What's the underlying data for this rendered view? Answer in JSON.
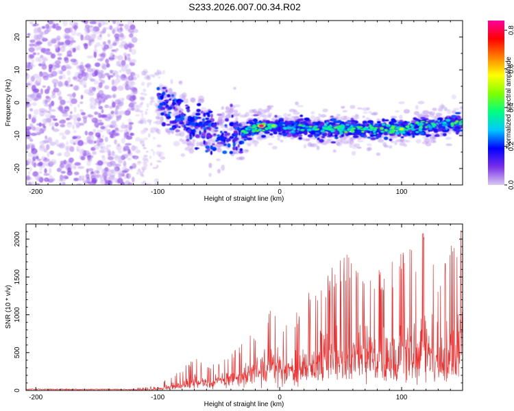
{
  "figure_title": "S233.2026.007.00.34.R02",
  "chart_data": [
    {
      "type": "heatmap",
      "title": "S233.2026.007.00.34.R02",
      "xlabel": "Height of straight line (km)",
      "ylabel": "Frequency (Hz)",
      "xlim": [
        -208,
        150
      ],
      "ylim": [
        -25,
        25
      ],
      "x_ticks": [
        "-200",
        "-100",
        "0",
        "100"
      ],
      "x_tick_values": [
        -200,
        -100,
        0,
        100
      ],
      "y_ticks": [
        "-20",
        "-10",
        "0",
        "10",
        "20"
      ],
      "y_tick_values": [
        -20,
        -10,
        0,
        10,
        20
      ],
      "colorbar": {
        "label": "Normalized spectral amplitude",
        "range": [
          0.0,
          0.85
        ],
        "ticks": [
          "0.0",
          "0.2",
          "0.4",
          "0.6",
          "0.8"
        ],
        "tick_values": [
          0.0,
          0.2,
          0.4,
          0.6,
          0.8
        ],
        "colors": [
          "#d8c8f2",
          "#7a2ee8",
          "#0000ff",
          "#00c8ff",
          "#00ff80",
          "#80ff00",
          "#ffff00",
          "#ff8000",
          "#ff0000",
          "#ff00a0"
        ]
      },
      "regions": [
        {
          "name": "noise",
          "x_range": [
            -208,
            -118
          ],
          "freq_range": [
            -25,
            25
          ],
          "amplitude": 0.02
        },
        {
          "name": "transition",
          "x_range": [
            -118,
            -95
          ],
          "freq_range": [
            -25,
            10
          ],
          "amplitude": 0.03
        },
        {
          "name": "turbulent-signal",
          "x_range": [
            -100,
            -30
          ],
          "freq_range": [
            -16,
            4
          ],
          "amplitude": 0.25
        },
        {
          "name": "steady-signal",
          "x_range": [
            -30,
            150
          ],
          "freq_range": [
            -11,
            -4
          ],
          "amplitude": 0.35
        }
      ],
      "signal_center_freq": [
        {
          "x": -110,
          "f": 2
        },
        {
          "x": -90,
          "f": -2
        },
        {
          "x": -70,
          "f": -7
        },
        {
          "x": -50,
          "f": -9
        },
        {
          "x": -30,
          "f": -9
        },
        {
          "x": -15,
          "f": -7
        },
        {
          "x": 0,
          "f": -7.5
        },
        {
          "x": 50,
          "f": -8
        },
        {
          "x": 100,
          "f": -8
        },
        {
          "x": 150,
          "f": -6
        }
      ],
      "peak_values": [
        {
          "x": -15,
          "f": -7,
          "amplitude": 0.85
        },
        {
          "x": -5,
          "f": -7,
          "amplitude": 0.5
        },
        {
          "x": 100,
          "f": -8,
          "amplitude": 0.55
        }
      ]
    },
    {
      "type": "line",
      "xlabel": "Height of straight line (km)",
      "ylabel": "SNR (10 * v/v)",
      "xlim": [
        -208,
        150
      ],
      "ylim": [
        0,
        2200
      ],
      "x_ticks": [
        "-200",
        "-100",
        "0",
        "100"
      ],
      "x_tick_values": [
        -200,
        -100,
        0,
        100
      ],
      "y_ticks": [
        "0",
        "500",
        "1000",
        "1500",
        "2000"
      ],
      "y_tick_values": [
        0,
        500,
        1000,
        1500,
        2000
      ],
      "color": "#ee3030",
      "series": [
        {
          "name": "SNR",
          "envelope_x": [
            -208,
            -120,
            -100,
            -90,
            -80,
            -70,
            -60,
            -50,
            -40,
            -30,
            -20,
            -10,
            0,
            10,
            20,
            30,
            40,
            50,
            60,
            70,
            80,
            90,
            100,
            110,
            120,
            130,
            140,
            150
          ],
          "envelope_max": [
            35,
            30,
            60,
            200,
            280,
            450,
            320,
            400,
            500,
            650,
            800,
            1100,
            1000,
            900,
            1300,
            1350,
            1550,
            1850,
            1750,
            1800,
            1600,
            1700,
            1850,
            1900,
            2200,
            1600,
            2200,
            2200
          ],
          "envelope_base": [
            8,
            8,
            12,
            20,
            35,
            60,
            60,
            80,
            120,
            150,
            200,
            250,
            200,
            150,
            180,
            200,
            220,
            220,
            200,
            220,
            200,
            220,
            200,
            220,
            200,
            200,
            180,
            200
          ]
        }
      ]
    }
  ]
}
